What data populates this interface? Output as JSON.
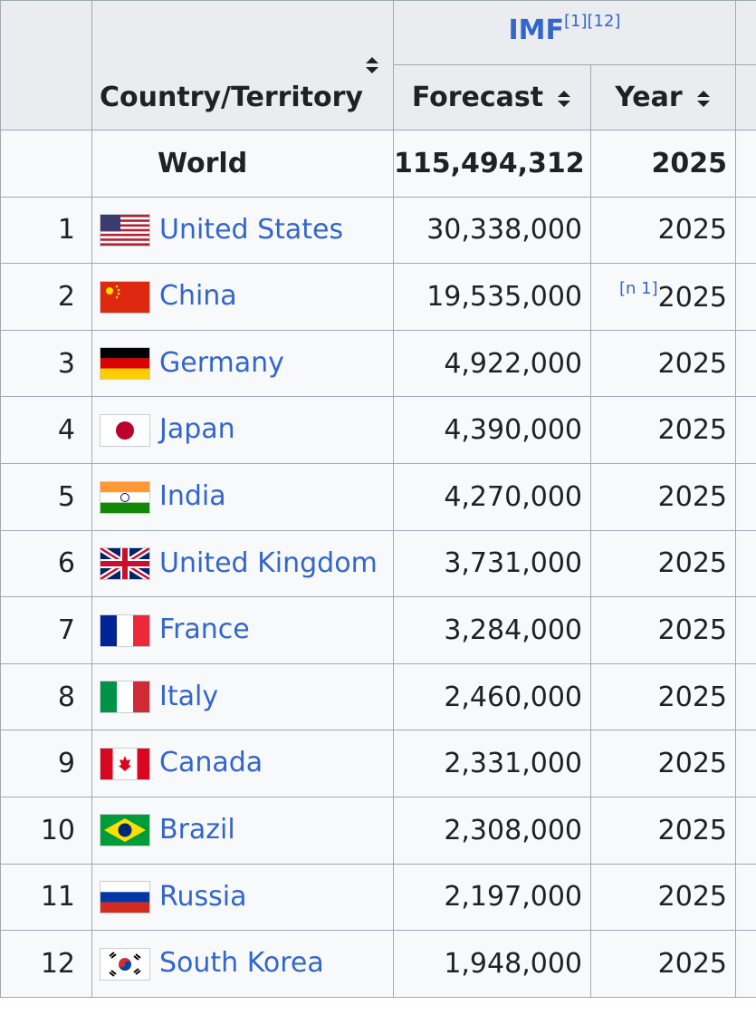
{
  "header": {
    "source": "IMF",
    "refs": [
      "[1]",
      "[12]"
    ],
    "country_col": "Country/Territory",
    "forecast_col": "Forecast",
    "year_col": "Year"
  },
  "world": {
    "name": "World",
    "forecast": "115,494,312",
    "year": 2025
  },
  "rows": [
    {
      "rank": 1,
      "country": "United States",
      "forecast": "30,338,000",
      "year": 2025
    },
    {
      "rank": 2,
      "country": "China",
      "forecast": "19,535,000",
      "note": "[n 1]",
      "year": 2025
    },
    {
      "rank": 3,
      "country": "Germany",
      "forecast": "4,922,000",
      "year": 2025
    },
    {
      "rank": 4,
      "country": "Japan",
      "forecast": "4,390,000",
      "year": 2025
    },
    {
      "rank": 5,
      "country": "India",
      "forecast": "4,270,000",
      "year": 2025
    },
    {
      "rank": 6,
      "country": "United Kingdom",
      "forecast": "3,731,000",
      "year": 2025
    },
    {
      "rank": 7,
      "country": "France",
      "forecast": "3,284,000",
      "year": 2025
    },
    {
      "rank": 8,
      "country": "Italy",
      "forecast": "2,460,000",
      "year": 2025
    },
    {
      "rank": 9,
      "country": "Canada",
      "forecast": "2,331,000",
      "year": 2025
    },
    {
      "rank": 10,
      "country": "Brazil",
      "forecast": "2,308,000",
      "year": 2025
    },
    {
      "rank": 11,
      "country": "Russia",
      "forecast": "2,197,000",
      "year": 2025
    },
    {
      "rank": 12,
      "country": "South Korea",
      "forecast": "1,948,000",
      "year": 2025
    }
  ]
}
